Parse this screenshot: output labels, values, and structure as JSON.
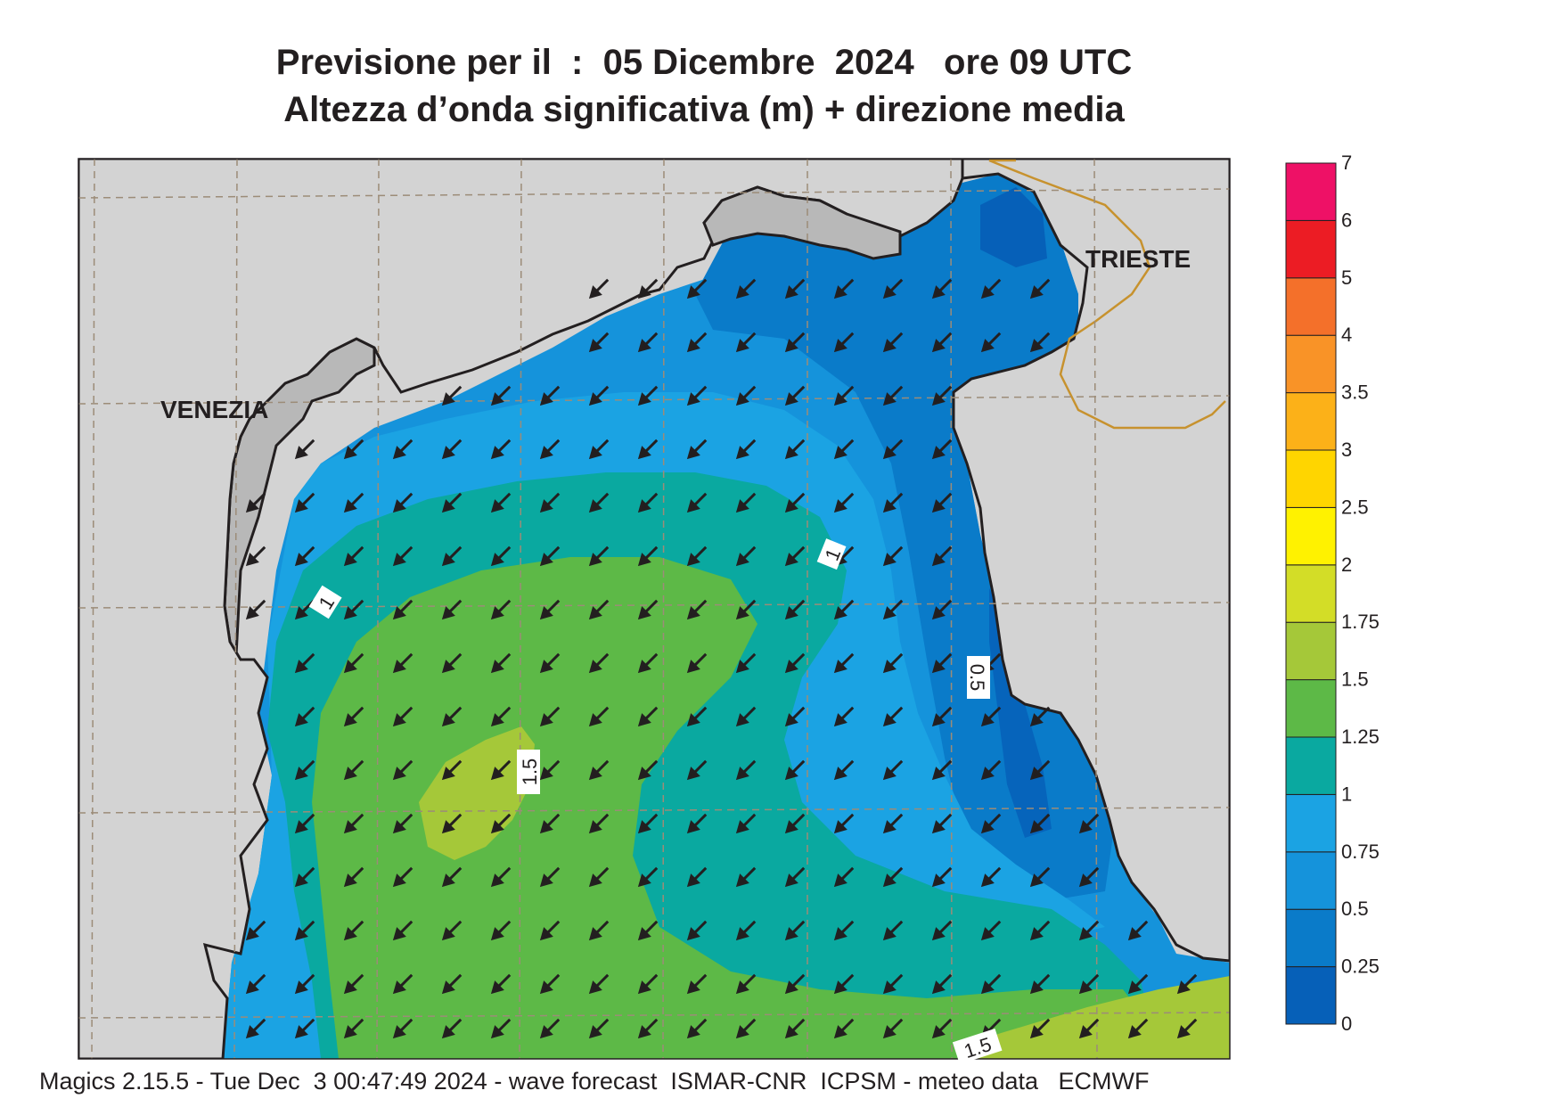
{
  "title": {
    "line1": "Previsione per il  :  05 Dicembre  2024   ore 09 UTC",
    "line2": "Altezza d’onda significativa (m) + direzione media"
  },
  "footer": "Magics 2.15.5 - Tue Dec  3 00:47:49 2024 - wave forecast  ISMAR-CNR  ICPSM - meteo data   ECMWF",
  "cities": {
    "venezia": "VENEZIA",
    "trieste": "TRIESTE"
  },
  "contour_labels": {
    "c1_west": "1",
    "c1_east": "1",
    "c05": "0.5",
    "c15_center": "1.5",
    "c15_south": "1.5"
  },
  "colorbar": {
    "labels": [
      "0",
      "0.25",
      "0.5",
      "0.75",
      "1",
      "1.25",
      "1.5",
      "1.75",
      "2",
      "2.5",
      "3",
      "3.5",
      "4",
      "5",
      "6",
      "7"
    ],
    "colors": [
      "#0660b8",
      "#0a7bc9",
      "#1593db",
      "#1ba3e3",
      "#0aa9a0",
      "#5db947",
      "#a5c839",
      "#d3dd27",
      "#fff200",
      "#ffd500",
      "#fcb118",
      "#f99327",
      "#f4702a",
      "#ec1c24",
      "#ee1166"
    ]
  },
  "colors": {
    "land": "#d3d3d3",
    "lagoon_gray": "#b8b8b8",
    "border": "#c7922e",
    "grid": "#9c8c78",
    "arrow": "#231f20"
  },
  "wave_direction": "toward south-west"
}
